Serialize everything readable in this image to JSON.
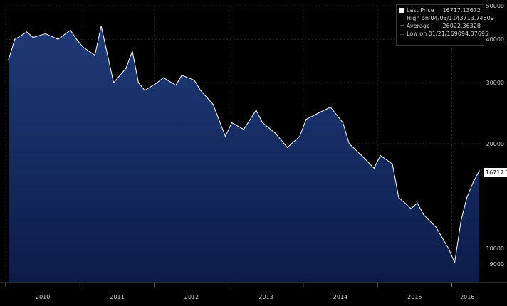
{
  "legend": {
    "last_price_label": "Last Price",
    "last_price_value": "16717.13672",
    "high_label": "High on 04/08/11",
    "high_value": "43713.74609",
    "average_label": "Average",
    "average_value": "26022.36328",
    "low_label": "Low on 01/21/16",
    "low_value": "9094.37695"
  },
  "price_tag": "16717.1",
  "colors": {
    "background": "#000000",
    "fill_top": "#1f3a78",
    "fill_bottom": "#0c1c4a",
    "line": "#ffffff",
    "grid": "#3a3a3a"
  },
  "chart_data": {
    "type": "area",
    "scale": "log",
    "ylim": [
      8000,
      50000
    ],
    "y_ticks": [
      9000,
      10000,
      20000,
      30000,
      40000,
      50000
    ],
    "x_tick_labels": [
      "2010",
      "2011",
      "2012",
      "2013",
      "2014",
      "2015",
      "2016"
    ],
    "x": [
      "2010-01",
      "2010-02",
      "2010-04",
      "2010-05",
      "2010-07",
      "2010-09",
      "2010-11",
      "2010-12",
      "2011-01",
      "2011-03",
      "2011-04",
      "2011-06",
      "2011-08",
      "2011-09",
      "2011-10",
      "2011-11",
      "2012-01",
      "2012-02",
      "2012-04",
      "2012-05",
      "2012-07",
      "2012-08",
      "2012-10",
      "2012-12",
      "2013-01",
      "2013-03",
      "2013-05",
      "2013-06",
      "2013-08",
      "2013-09",
      "2013-10",
      "2013-12",
      "2014-01",
      "2014-03",
      "2014-05",
      "2014-07",
      "2014-08",
      "2014-10",
      "2014-12",
      "2015-01",
      "2015-03",
      "2015-04",
      "2015-06",
      "2015-07",
      "2015-08",
      "2015-10",
      "2015-12",
      "2016-01",
      "2016-02",
      "2016-03",
      "2016-04",
      "2016-05"
    ],
    "values": [
      35000,
      40000,
      42000,
      40500,
      41500,
      40000,
      42500,
      40000,
      38000,
      36000,
      43700,
      30000,
      33000,
      37000,
      30000,
      28500,
      30000,
      31000,
      29500,
      31500,
      30500,
      28500,
      26000,
      21000,
      23000,
      22000,
      25000,
      23000,
      21500,
      20500,
      19500,
      21000,
      23500,
      24500,
      25500,
      23000,
      20000,
      18500,
      17000,
      18500,
      17500,
      14000,
      13000,
      13500,
      12500,
      11500,
      10000,
      9094,
      12000,
      14000,
      15500,
      16717
    ]
  }
}
